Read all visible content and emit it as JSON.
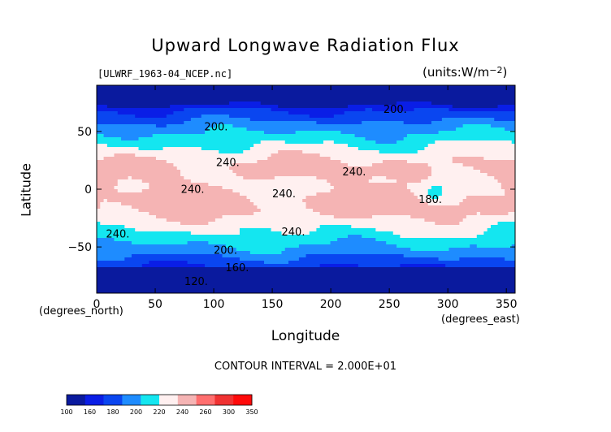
{
  "chart_data": {
    "type": "heatmap",
    "title": "Upward Longwave Radiation Flux",
    "file_label": "[ULWRF_1963-04_NCEP.nc]",
    "units_label": "(units:W/m^2)",
    "xlabel": "Longitude",
    "ylabel": "Latitude",
    "x_units": "(degrees_east)",
    "y_units": "(degrees_north)",
    "xlim": [
      0,
      357.5
    ],
    "ylim": [
      -90,
      90
    ],
    "x_ticks": [
      0,
      50,
      100,
      150,
      200,
      250,
      300,
      350
    ],
    "y_ticks": [
      -50,
      0,
      50
    ],
    "contour_interval": "CONTOUR INTERVAL = 2.000E+01",
    "contour_labels": [
      {
        "text": "200",
        "lon": 255,
        "lat": 66
      },
      {
        "text": "200",
        "lon": 102,
        "lat": 51
      },
      {
        "text": "240",
        "lon": 112,
        "lat": 20
      },
      {
        "text": "240",
        "lon": 220,
        "lat": 12
      },
      {
        "text": "240",
        "lon": 82,
        "lat": -3
      },
      {
        "text": "240",
        "lon": 160,
        "lat": -7
      },
      {
        "text": "180",
        "lon": 285,
        "lat": -12
      },
      {
        "text": "240",
        "lon": 18,
        "lat": -42
      },
      {
        "text": "240",
        "lon": 168,
        "lat": -40
      },
      {
        "text": "200",
        "lon": 110,
        "lat": -56
      },
      {
        "text": "160",
        "lon": 120,
        "lat": -71
      },
      {
        "text": "120",
        "lon": 85,
        "lat": -83
      }
    ],
    "colorbar": {
      "ticks": [
        "100",
        "160",
        "180",
        "200",
        "220",
        "240",
        "260",
        "300",
        "350"
      ],
      "colors": [
        "#0a1a9e",
        "#0a1ee6",
        "#0a46f0",
        "#1e8cff",
        "#14e6f0",
        "#fff0f0",
        "#f5b4b4",
        "#ff6e6e",
        "#f03232",
        "#ff0a0a"
      ]
    }
  }
}
